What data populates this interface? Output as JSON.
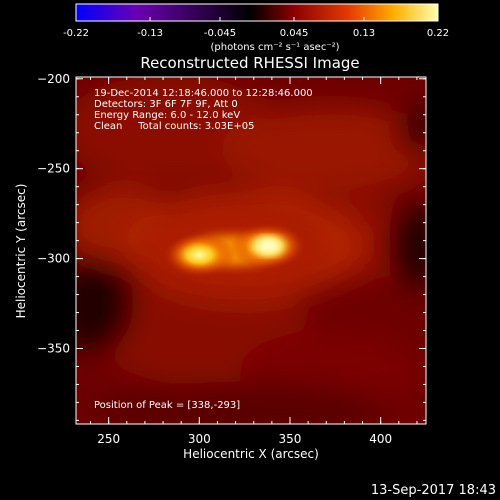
{
  "chart_data": {
    "type": "heatmap",
    "title": "Reconstructed RHESSI Image",
    "xlabel": "Heliocentric X (arcsec)",
    "ylabel": "Heliocentric Y (arcsec)",
    "xlim": [
      232,
      425
    ],
    "ylim": [
      -392,
      -199
    ],
    "x_ticks": [
      250,
      300,
      350,
      400
    ],
    "y_ticks": [
      -200,
      -250,
      -300,
      -350
    ],
    "colorbar": {
      "range": [
        -0.22,
        0.22
      ],
      "ticks": [
        "-0.22",
        "-0.13",
        "-0.045",
        "0.045",
        "0.13",
        "0.22"
      ],
      "unit": "(photons cm⁻² s⁻¹ asec⁻²)",
      "colormap": [
        "#0000ff",
        "#6a00b0",
        "#000000",
        "#8a0000",
        "#e43800",
        "#ffb000",
        "#ffffb0"
      ]
    },
    "annotations": [
      "19-Dec-2014 12:18:46.000 to 12:28:46.000",
      "Detectors: 3F 6F 7F 9F, Att 0",
      "Energy Range: 6.0 - 12.0 keV",
      "Clean     Total counts: 3.03E+05"
    ],
    "peak": {
      "label": "Position of Peak = [338,-293]",
      "x": 338,
      "y": -293,
      "value": 0.22
    },
    "sources": [
      {
        "x": 338,
        "y": -293,
        "value": 0.22
      },
      {
        "x": 300,
        "y": -298,
        "value": 0.2
      }
    ]
  },
  "footer": {
    "timestamp": "13-Sep-2017 18:43"
  }
}
